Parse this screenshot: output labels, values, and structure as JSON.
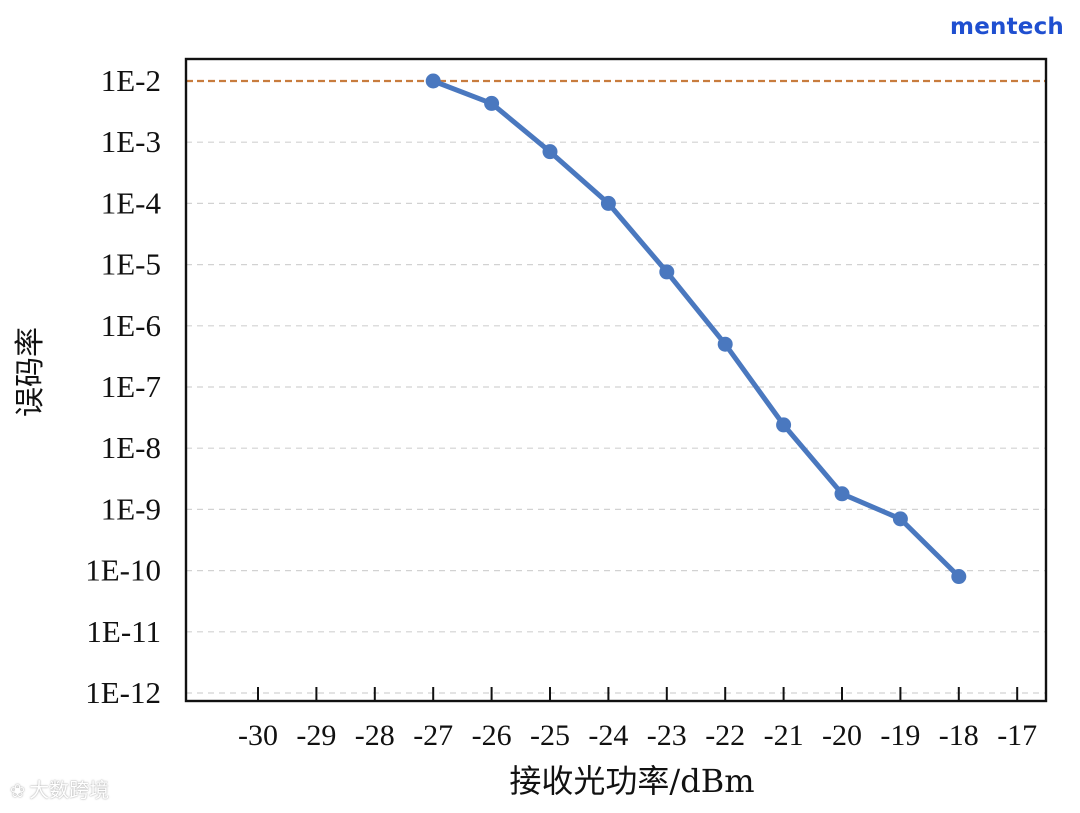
{
  "brand": {
    "name": "mentech"
  },
  "watermark": {
    "text": "大数跨境",
    "icon": "brand-logo-icon"
  },
  "colors": {
    "series": "#4a78bf",
    "threshold": "#c87c3e",
    "grid": "#d2d2d2",
    "axis": "#111111",
    "brand": "#1f4fd0"
  },
  "chart_data": {
    "type": "line",
    "title": "",
    "xlabel": "接收光功率/dBm",
    "ylabel": "误码率",
    "xlim": [
      -31,
      -16.5
    ],
    "ylim": [
      1e-12,
      0.01
    ],
    "yscale": "log",
    "x_ticks": [
      -30,
      -29,
      -28,
      -27,
      -26,
      -25,
      -24,
      -23,
      -22,
      -21,
      -20,
      -19,
      -18,
      -17
    ],
    "x_tick_labels": [
      "-30",
      "-29",
      "-28",
      "-27",
      "-26",
      "-25",
      "-24",
      "-23",
      "-22",
      "-21",
      "-20",
      "-19",
      "-18",
      "-17"
    ],
    "y_ticks": [
      0.01,
      0.001,
      0.0001,
      1e-05,
      1e-06,
      1e-07,
      1e-08,
      1e-09,
      1e-10,
      1e-11,
      1e-12
    ],
    "y_tick_labels": [
      "1E-2",
      "1E-3",
      "1E-4",
      "1E-5",
      "1E-6",
      "1E-7",
      "1E-8",
      "1E-9",
      "1E-10",
      "1E-11",
      "1E-12"
    ],
    "grid": "horizontal-dashed",
    "reference_lines": [
      {
        "y": 0.01,
        "style": "dashed"
      }
    ],
    "series": [
      {
        "x": [
          -27,
          -26,
          -25,
          -24,
          -23,
          -22,
          -21,
          -20,
          -19,
          -18
        ],
        "y": [
          0.01,
          0.0043,
          0.0007,
          0.0001,
          7.6e-06,
          5e-07,
          2.4e-08,
          1.8e-09,
          7e-10,
          8e-11
        ]
      }
    ]
  }
}
